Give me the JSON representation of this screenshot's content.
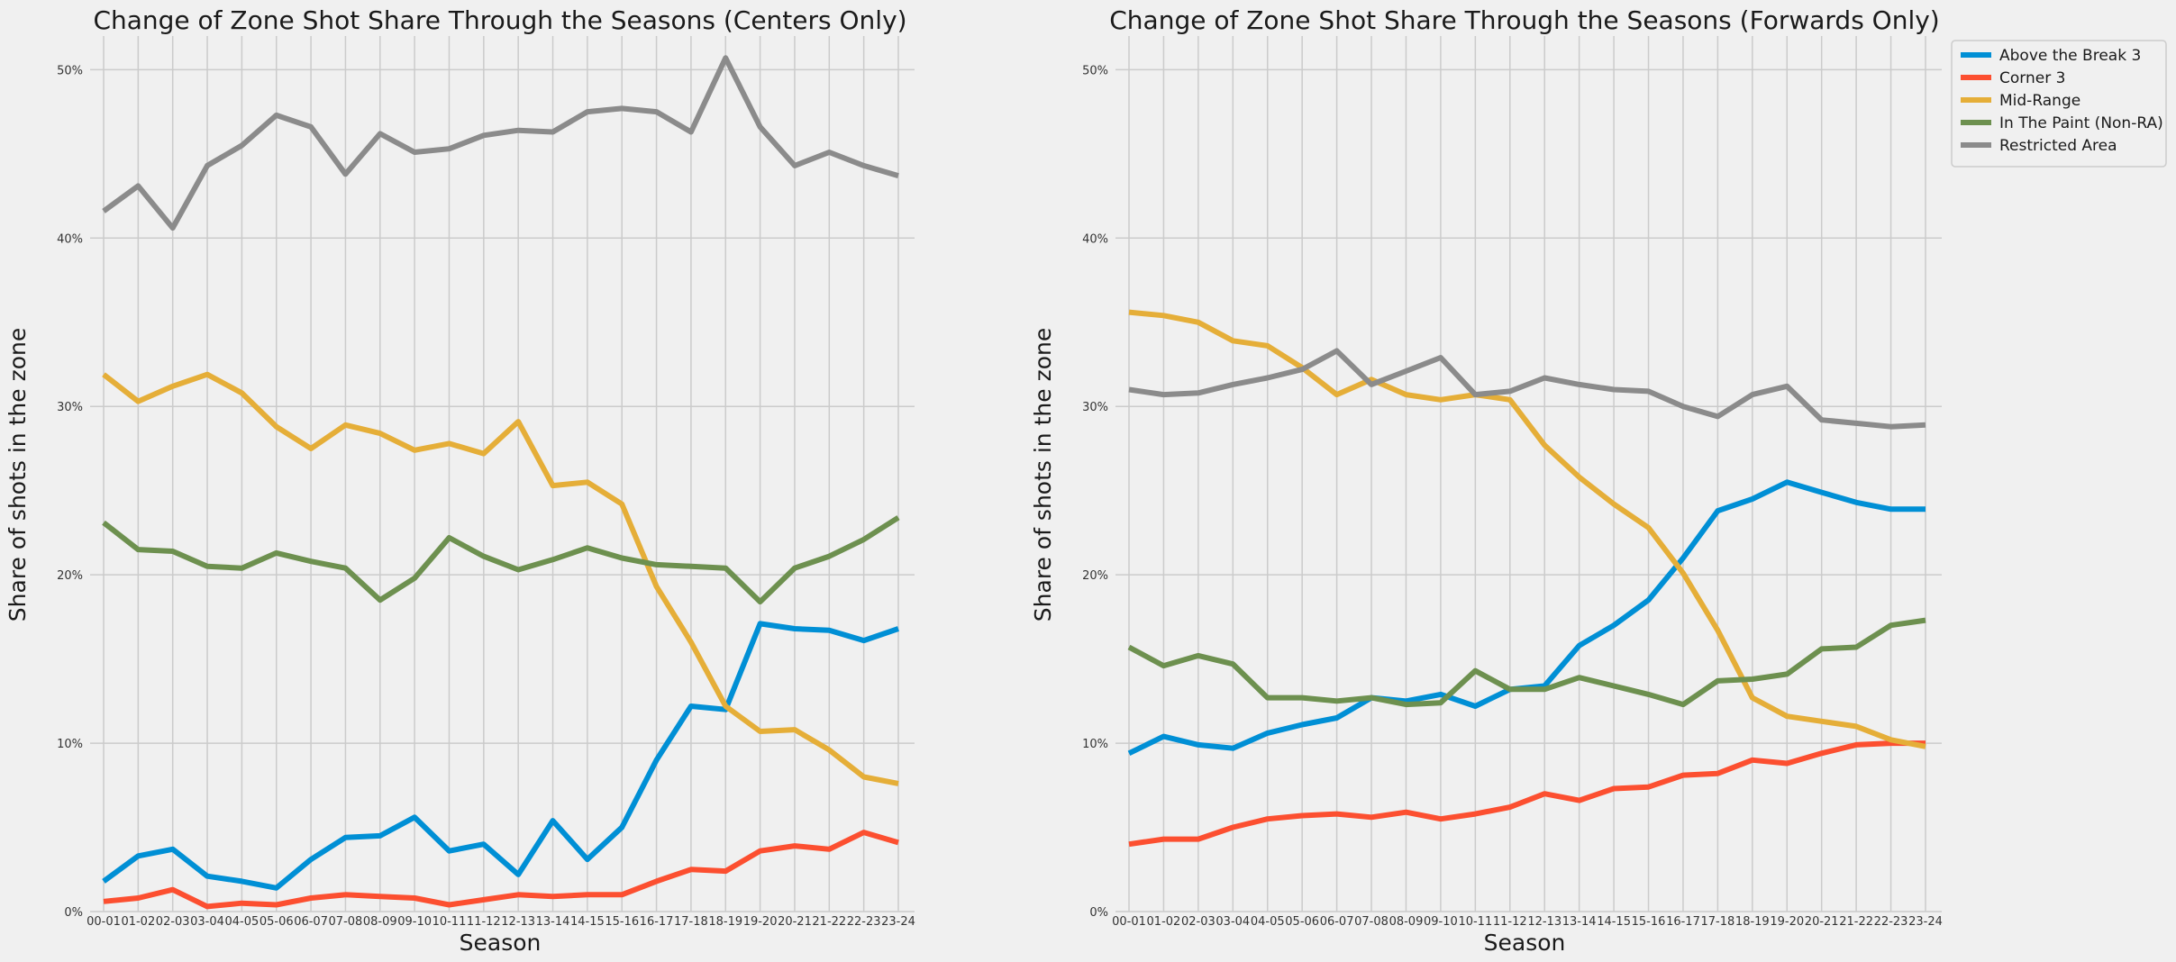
{
  "chart_data": [
    {
      "type": "line",
      "title": "Change of Zone Shot Share Through the Seasons (Centers Only)",
      "xlabel": "Season",
      "ylabel": "Share of shots in the zone",
      "ylim": [
        0,
        0.52
      ],
      "yticks": [
        0,
        0.1,
        0.2,
        0.3,
        0.4,
        0.5
      ],
      "ytick_labels": [
        "0%",
        "10%",
        "20%",
        "30%",
        "40%",
        "50%"
      ],
      "grid": true,
      "categories": [
        "00-01",
        "01-02",
        "02-03",
        "03-04",
        "04-05",
        "05-06",
        "06-07",
        "07-08",
        "08-09",
        "09-10",
        "10-11",
        "11-12",
        "12-13",
        "13-14",
        "14-15",
        "15-16",
        "16-17",
        "17-18",
        "18-19",
        "19-20",
        "20-21",
        "21-22",
        "22-23",
        "23-24"
      ],
      "series": [
        {
          "name": "Above the Break 3",
          "color": "#008fd5",
          "values": [
            0.018,
            0.033,
            0.037,
            0.021,
            0.018,
            0.014,
            0.031,
            0.044,
            0.045,
            0.056,
            0.036,
            0.04,
            0.022,
            0.054,
            0.031,
            0.05,
            0.09,
            0.122,
            0.12,
            0.171,
            0.168,
            0.167,
            0.161,
            0.168
          ]
        },
        {
          "name": "Corner 3",
          "color": "#fc4f30",
          "values": [
            0.006,
            0.008,
            0.013,
            0.003,
            0.005,
            0.004,
            0.008,
            0.01,
            0.009,
            0.008,
            0.004,
            0.007,
            0.01,
            0.009,
            0.01,
            0.01,
            0.018,
            0.025,
            0.024,
            0.036,
            0.039,
            0.037,
            0.047,
            0.041
          ]
        },
        {
          "name": "Mid-Range",
          "color": "#e5ae38",
          "values": [
            0.319,
            0.303,
            0.312,
            0.319,
            0.308,
            0.288,
            0.275,
            0.289,
            0.284,
            0.274,
            0.278,
            0.272,
            0.291,
            0.253,
            0.255,
            0.242,
            0.193,
            0.16,
            0.122,
            0.107,
            0.108,
            0.096,
            0.08,
            0.076
          ]
        },
        {
          "name": "In The Paint (Non-RA)",
          "color": "#6d904f",
          "values": [
            0.231,
            0.215,
            0.214,
            0.205,
            0.204,
            0.213,
            0.208,
            0.204,
            0.185,
            0.198,
            0.222,
            0.211,
            0.203,
            0.209,
            0.216,
            0.21,
            0.206,
            0.205,
            0.204,
            0.184,
            0.204,
            0.211,
            0.221,
            0.234
          ]
        },
        {
          "name": "Restricted Area",
          "color": "#8b8b8b",
          "values": [
            0.416,
            0.431,
            0.406,
            0.443,
            0.455,
            0.473,
            0.466,
            0.438,
            0.462,
            0.451,
            0.453,
            0.461,
            0.464,
            0.463,
            0.475,
            0.477,
            0.475,
            0.463,
            0.507,
            0.466,
            0.443,
            0.451,
            0.443,
            0.437
          ]
        }
      ]
    },
    {
      "type": "line",
      "title": "Change of Zone Shot Share Through the Seasons (Forwards Only)",
      "xlabel": "Season",
      "ylabel": "Share of shots in the zone",
      "ylim": [
        0,
        0.52
      ],
      "yticks": [
        0,
        0.1,
        0.2,
        0.3,
        0.4,
        0.5
      ],
      "ytick_labels": [
        "0%",
        "10%",
        "20%",
        "30%",
        "40%",
        "50%"
      ],
      "grid": true,
      "legend": "top-right",
      "categories": [
        "00-01",
        "01-02",
        "02-03",
        "03-04",
        "04-05",
        "05-06",
        "06-07",
        "07-08",
        "08-09",
        "09-10",
        "10-11",
        "11-12",
        "12-13",
        "13-14",
        "14-15",
        "15-16",
        "16-17",
        "17-18",
        "18-19",
        "19-20",
        "20-21",
        "21-22",
        "22-23",
        "23-24"
      ],
      "series": [
        {
          "name": "Above the Break 3",
          "color": "#008fd5",
          "values": [
            0.094,
            0.104,
            0.099,
            0.097,
            0.106,
            0.111,
            0.115,
            0.127,
            0.125,
            0.129,
            0.122,
            0.132,
            0.134,
            0.158,
            0.17,
            0.185,
            0.21,
            0.238,
            0.245,
            0.255,
            0.249,
            0.243,
            0.239,
            0.239
          ]
        },
        {
          "name": "Corner 3",
          "color": "#fc4f30",
          "values": [
            0.04,
            0.043,
            0.043,
            0.05,
            0.055,
            0.057,
            0.058,
            0.056,
            0.059,
            0.055,
            0.058,
            0.062,
            0.07,
            0.066,
            0.073,
            0.074,
            0.081,
            0.082,
            0.09,
            0.088,
            0.094,
            0.099,
            0.1,
            0.1
          ]
        },
        {
          "name": "Mid-Range",
          "color": "#e5ae38",
          "values": [
            0.356,
            0.354,
            0.35,
            0.339,
            0.336,
            0.323,
            0.307,
            0.316,
            0.307,
            0.304,
            0.307,
            0.304,
            0.277,
            0.258,
            0.242,
            0.228,
            0.201,
            0.167,
            0.127,
            0.116,
            0.113,
            0.11,
            0.102,
            0.098
          ]
        },
        {
          "name": "In The Paint (Non-RA)",
          "color": "#6d904f",
          "values": [
            0.157,
            0.146,
            0.152,
            0.147,
            0.127,
            0.127,
            0.125,
            0.127,
            0.123,
            0.124,
            0.143,
            0.132,
            0.132,
            0.139,
            0.134,
            0.129,
            0.123,
            0.137,
            0.138,
            0.141,
            0.156,
            0.157,
            0.17,
            0.173
          ]
        },
        {
          "name": "Restricted Area",
          "color": "#8b8b8b",
          "values": [
            0.31,
            0.307,
            0.308,
            0.313,
            0.317,
            0.322,
            0.333,
            0.313,
            0.321,
            0.329,
            0.307,
            0.309,
            0.317,
            0.313,
            0.31,
            0.309,
            0.3,
            0.294,
            0.307,
            0.312,
            0.292,
            0.29,
            0.288,
            0.289
          ]
        }
      ]
    }
  ]
}
